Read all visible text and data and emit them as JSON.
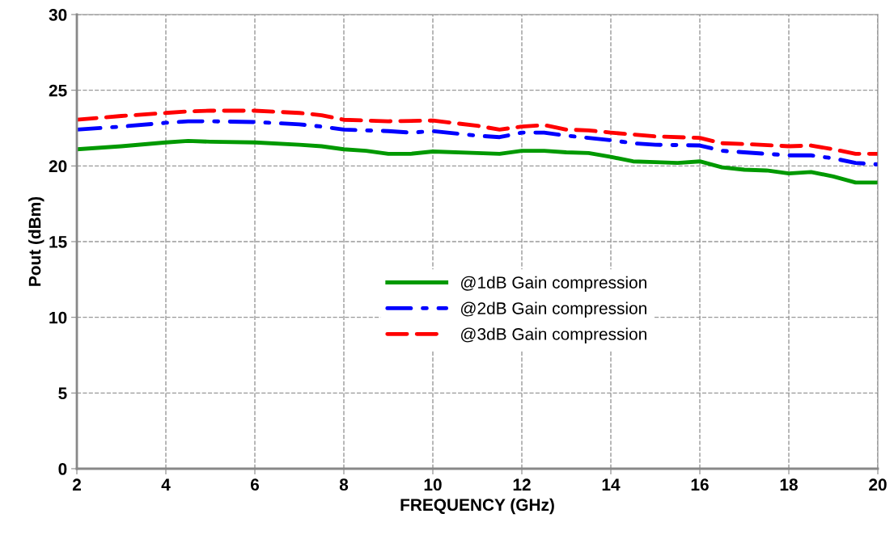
{
  "chart_data": {
    "type": "line",
    "xlabel": "FREQUENCY (GHz)",
    "ylabel": "Pout (dBm)",
    "xlim": [
      2,
      20
    ],
    "ylim": [
      0,
      30
    ],
    "xticks": [
      2,
      4,
      6,
      8,
      10,
      12,
      14,
      16,
      18,
      20
    ],
    "yticks": [
      0,
      5,
      10,
      15,
      20,
      25,
      30
    ],
    "grid": true,
    "legend": "center",
    "marker": "none",
    "series": [
      {
        "name": "@1dB Gain compression",
        "color": "#009900",
        "line_style": "solid",
        "x": [
          2,
          3,
          4,
          4.5,
          5,
          6,
          7,
          7.5,
          8,
          8.5,
          9,
          9.5,
          10,
          11,
          11.5,
          12,
          12.5,
          13,
          13.5,
          14,
          14.5,
          15,
          15.5,
          16,
          16.5,
          17,
          17.5,
          18,
          18.5,
          19,
          19.5,
          20
        ],
        "values": [
          21.1,
          21.3,
          21.55,
          21.65,
          21.6,
          21.55,
          21.4,
          21.3,
          21.1,
          21.0,
          20.8,
          20.8,
          20.95,
          20.85,
          20.8,
          21.0,
          21.0,
          20.9,
          20.85,
          20.6,
          20.3,
          20.25,
          20.2,
          20.3,
          19.9,
          19.75,
          19.7,
          19.5,
          19.6,
          19.3,
          18.9,
          18.9
        ]
      },
      {
        "name": "@2dB Gain compression",
        "color": "#0000ff",
        "line_style": "dashdot",
        "x": [
          2,
          3,
          4,
          4.5,
          5,
          6,
          7,
          7.5,
          8,
          9,
          9.5,
          10,
          11,
          11.5,
          12,
          12.5,
          13,
          14,
          14.5,
          15,
          16,
          16.5,
          17,
          18,
          18.5,
          19,
          19.5,
          20
        ],
        "values": [
          22.4,
          22.6,
          22.85,
          22.95,
          22.95,
          22.9,
          22.75,
          22.6,
          22.4,
          22.3,
          22.2,
          22.3,
          22.0,
          21.9,
          22.2,
          22.2,
          22.0,
          21.7,
          21.5,
          21.4,
          21.35,
          21.0,
          20.9,
          20.7,
          20.7,
          20.5,
          20.2,
          20.1
        ]
      },
      {
        "name": "@3dB Gain compression",
        "color": "#ff0000",
        "line_style": "dashed",
        "x": [
          2,
          3,
          4,
          4.5,
          5,
          6,
          7,
          7.5,
          8,
          9,
          10,
          11,
          11.5,
          12,
          12.5,
          13,
          13.5,
          14,
          15,
          16,
          16.5,
          17,
          18,
          18.5,
          19,
          19.5,
          20
        ],
        "values": [
          23.05,
          23.3,
          23.5,
          23.6,
          23.65,
          23.65,
          23.5,
          23.35,
          23.05,
          22.95,
          23.0,
          22.65,
          22.4,
          22.6,
          22.7,
          22.4,
          22.35,
          22.2,
          21.95,
          21.85,
          21.5,
          21.45,
          21.3,
          21.35,
          21.1,
          20.8,
          20.8
        ]
      }
    ]
  }
}
